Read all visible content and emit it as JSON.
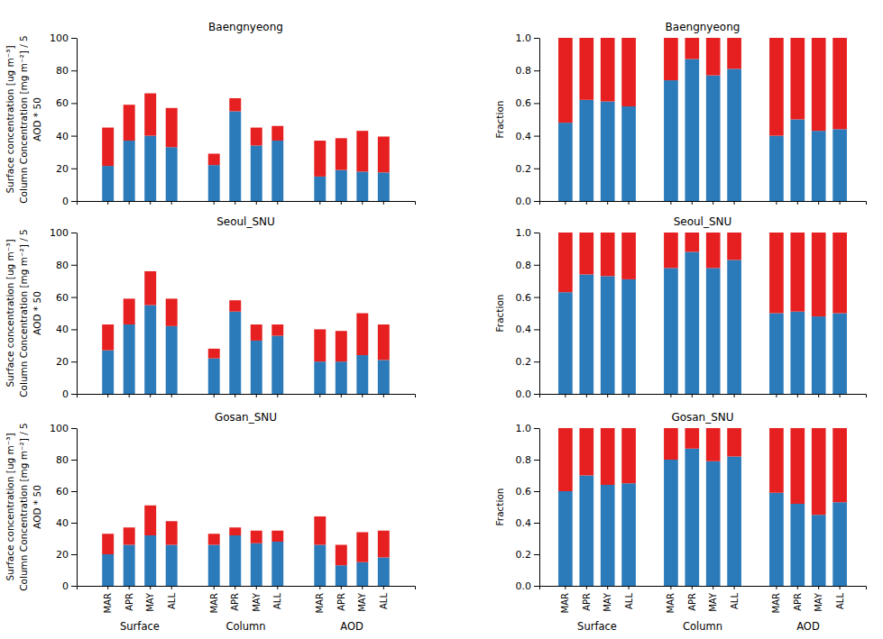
{
  "chart_data": [
    {
      "type": "bar",
      "stacked": true,
      "title": "Baengnyeong",
      "ylabel": [
        "Surface concentration [ug m⁻³]",
        "Column Concentration [mg m⁻²] / 5",
        "AOD * 50"
      ],
      "categories": [
        "MAR",
        "APR",
        "MAY",
        "ALL",
        null,
        "MAR",
        "APR",
        "MAY",
        "ALL",
        null,
        "MAR",
        "APR",
        "MAY",
        "ALL"
      ],
      "series": [
        {
          "color": "#2b7bba",
          "values": [
            21.5,
            37,
            40,
            33,
            null,
            22,
            55,
            34,
            37,
            null,
            15,
            19,
            18,
            17.5
          ]
        },
        {
          "color": "#e62020",
          "values": [
            23.5,
            22,
            26,
            24,
            null,
            7,
            8,
            11,
            9,
            null,
            22,
            19.5,
            25,
            22
          ]
        }
      ],
      "ylim": [
        0,
        100
      ],
      "yticks": [
        0,
        20,
        40,
        60,
        80,
        100
      ],
      "tick_labels": "y"
    },
    {
      "type": "bar",
      "stacked": true,
      "title": "Baengnyeong",
      "ylabel": [
        "Fraction"
      ],
      "categories": [
        "MAR",
        "APR",
        "MAY",
        "ALL",
        null,
        "MAR",
        "APR",
        "MAY",
        "ALL",
        null,
        "MAR",
        "APR",
        "MAY",
        "ALL"
      ],
      "series": [
        {
          "color": "#2b7bba",
          "values": [
            0.48,
            0.62,
            0.61,
            0.58,
            null,
            0.74,
            0.87,
            0.77,
            0.81,
            null,
            0.4,
            0.5,
            0.43,
            0.44
          ]
        },
        {
          "color": "#e62020",
          "values": [
            0.52,
            0.38,
            0.39,
            0.42,
            null,
            0.26,
            0.13,
            0.23,
            0.19,
            null,
            0.6,
            0.5,
            0.57,
            0.56
          ]
        }
      ],
      "ylim": [
        0,
        1
      ],
      "yticks": [
        {
          "value": 0,
          "label": "0.0"
        },
        {
          "value": 0.2,
          "label": "0.2"
        },
        {
          "value": 0.4,
          "label": "0.4"
        },
        {
          "value": 0.6,
          "label": "0.6"
        },
        {
          "value": 0.8,
          "label": "0.8"
        },
        {
          "value": 1,
          "label": "1.0"
        }
      ],
      "tick_labels": "y"
    },
    {
      "type": "bar",
      "stacked": true,
      "title": "Seoul_SNU",
      "ylabel": [
        "Surface concentration [ug m⁻³]",
        "Column Concentration [mg m⁻²] / 5",
        "AOD * 50"
      ],
      "categories": [
        "MAR",
        "APR",
        "MAY",
        "ALL",
        null,
        "MAR",
        "APR",
        "MAY",
        "ALL",
        null,
        "MAR",
        "APR",
        "MAY",
        "ALL"
      ],
      "series": [
        {
          "color": "#2b7bba",
          "values": [
            27,
            43,
            55,
            42,
            null,
            22,
            51,
            33,
            36,
            null,
            20,
            20,
            24,
            21
          ]
        },
        {
          "color": "#e62020",
          "values": [
            16,
            16,
            21,
            17,
            null,
            6,
            7,
            10,
            7,
            null,
            20,
            19,
            26,
            22
          ]
        }
      ],
      "ylim": [
        0,
        100
      ],
      "yticks": [
        0,
        20,
        40,
        60,
        80,
        100
      ],
      "tick_labels": "y"
    },
    {
      "type": "bar",
      "stacked": true,
      "title": "Seoul_SNU",
      "ylabel": [
        "Fraction"
      ],
      "categories": [
        "MAR",
        "APR",
        "MAY",
        "ALL",
        null,
        "MAR",
        "APR",
        "MAY",
        "ALL",
        null,
        "MAR",
        "APR",
        "MAY",
        "ALL"
      ],
      "series": [
        {
          "color": "#2b7bba",
          "values": [
            0.63,
            0.74,
            0.73,
            0.71,
            null,
            0.78,
            0.88,
            0.78,
            0.83,
            null,
            0.5,
            0.51,
            0.48,
            0.5
          ]
        },
        {
          "color": "#e62020",
          "values": [
            0.37,
            0.26,
            0.27,
            0.29,
            null,
            0.22,
            0.12,
            0.22,
            0.17,
            null,
            0.5,
            0.49,
            0.52,
            0.5
          ]
        }
      ],
      "ylim": [
        0,
        1
      ],
      "yticks": [
        {
          "value": 0,
          "label": "0.0"
        },
        {
          "value": 0.2,
          "label": "0.2"
        },
        {
          "value": 0.4,
          "label": "0.4"
        },
        {
          "value": 0.6,
          "label": "0.6"
        },
        {
          "value": 0.8,
          "label": "0.8"
        },
        {
          "value": 1,
          "label": "1.0"
        }
      ],
      "tick_labels": "y"
    },
    {
      "type": "bar",
      "stacked": true,
      "title": "Gosan_SNU",
      "ylabel": [
        "Surface concentration [ug m⁻³]",
        "Column Concentration [mg m⁻²] / 5",
        "AOD * 50"
      ],
      "categories": [
        "MAR",
        "APR",
        "MAY",
        "ALL",
        null,
        "MAR",
        "APR",
        "MAY",
        "ALL",
        null,
        "MAR",
        "APR",
        "MAY",
        "ALL"
      ],
      "group_labels": [
        "Surface",
        "Column",
        "AOD"
      ],
      "series": [
        {
          "color": "#2b7bba",
          "values": [
            20,
            26,
            32,
            26,
            null,
            26,
            32,
            27,
            28,
            null,
            26,
            13,
            15,
            18
          ]
        },
        {
          "color": "#e62020",
          "values": [
            13,
            11,
            19,
            15,
            null,
            7,
            5,
            8,
            7,
            null,
            18,
            13,
            19,
            17
          ]
        }
      ],
      "ylim": [
        0,
        100
      ],
      "yticks": [
        0,
        20,
        40,
        60,
        80,
        100
      ]
    },
    {
      "type": "bar",
      "stacked": true,
      "title": "Gosan_SNU",
      "ylabel": [
        "Fraction"
      ],
      "categories": [
        "MAR",
        "APR",
        "MAY",
        "ALL",
        null,
        "MAR",
        "APR",
        "MAY",
        "ALL",
        null,
        "MAR",
        "APR",
        "MAY",
        "ALL"
      ],
      "group_labels": [
        "Surface",
        "Column",
        "AOD"
      ],
      "series": [
        {
          "color": "#2b7bba",
          "values": [
            0.6,
            0.7,
            0.64,
            0.65,
            null,
            0.8,
            0.87,
            0.79,
            0.82,
            null,
            0.59,
            0.52,
            0.45,
            0.53
          ]
        },
        {
          "color": "#e62020",
          "values": [
            0.4,
            0.3,
            0.36,
            0.35,
            null,
            0.2,
            0.13,
            0.21,
            0.18,
            null,
            0.41,
            0.48,
            0.55,
            0.47
          ]
        }
      ],
      "ylim": [
        0,
        1
      ],
      "yticks": [
        {
          "value": 0,
          "label": "0.0"
        },
        {
          "value": 0.2,
          "label": "0.2"
        },
        {
          "value": 0.4,
          "label": "0.4"
        },
        {
          "value": 0.6,
          "label": "0.6"
        },
        {
          "value": 0.8,
          "label": "0.8"
        },
        {
          "value": 1,
          "label": "1.0"
        }
      ]
    }
  ]
}
